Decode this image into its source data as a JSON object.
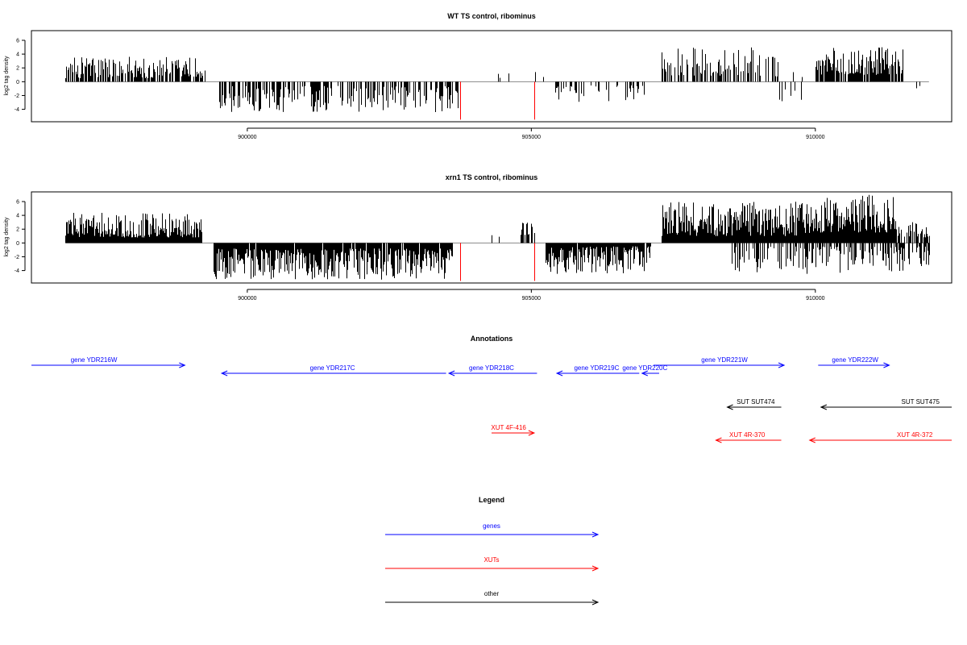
{
  "chart_data": [
    {
      "type": "bar",
      "title": "WT TS control, ribominus",
      "ylabel": "log2 tag density",
      "xlim": [
        896200,
        912400
      ],
      "ylim": [
        -5.8,
        7.4
      ],
      "xticks": [
        900000,
        905000,
        910000
      ],
      "xtick_labels": [
        "900000",
        "905000",
        "910000"
      ],
      "yticks": [
        6,
        4,
        2,
        0,
        -2,
        -4
      ],
      "ytick_labels": [
        "6",
        "4",
        "2",
        "0",
        "-2",
        "-4"
      ],
      "baseline": 0,
      "density_profile": [
        {
          "x": [
            896800,
            899250
          ],
          "value_range": [
            0.5,
            3.7
          ],
          "density": 0.7
        },
        {
          "x": [
            899500,
            903700
          ],
          "value_range": [
            -4.4,
            -0.6
          ],
          "density": 0.55
        },
        {
          "x": [
            904400,
            905300
          ],
          "value_range": [
            0.4,
            2.0
          ],
          "density": 0.05
        },
        {
          "x": [
            905400,
            907000
          ],
          "value_range": [
            -3.0,
            -0.5
          ],
          "density": 0.3
        },
        {
          "x": [
            907300,
            909300
          ],
          "value_range": [
            0.8,
            5.0
          ],
          "density": 0.45
        },
        {
          "x": [
            909300,
            909800
          ],
          "value_range": [
            -2.8,
            3.0
          ],
          "density": 0.35
        },
        {
          "x": [
            910000,
            911550
          ],
          "value_range": [
            1.0,
            5.0
          ],
          "density": 0.85
        },
        {
          "x": [
            911600,
            912000
          ],
          "value_range": [
            -2.0,
            -0.5
          ],
          "density": 0.1
        }
      ],
      "markers": [
        {
          "x": 903750,
          "value": -5.5,
          "color": "#ff0000"
        },
        {
          "x": 905050,
          "value": -5.5,
          "color": "#ff0000"
        }
      ],
      "series_color": "#000000"
    },
    {
      "type": "bar",
      "title": "xrn1 TS control, ribominus",
      "ylabel": "log2 tag density",
      "xlim": [
        896200,
        912400
      ],
      "ylim": [
        -5.8,
        7.4
      ],
      "xticks": [
        900000,
        905000,
        910000
      ],
      "xtick_labels": [
        "900000",
        "905000",
        "910000"
      ],
      "yticks": [
        6,
        4,
        2,
        0,
        -2,
        -4
      ],
      "ytick_labels": [
        "6",
        "4",
        "2",
        "0",
        "-2",
        "-4"
      ],
      "baseline": 0,
      "density_profile": [
        {
          "x": [
            896800,
            899200
          ],
          "value_range": [
            0.8,
            4.4
          ],
          "density": 1.0
        },
        {
          "x": [
            899400,
            903600
          ],
          "value_range": [
            -5.3,
            -0.8
          ],
          "density": 0.95
        },
        {
          "x": [
            904300,
            904500
          ],
          "value_range": [
            0.8,
            3.0
          ],
          "density": 0.15
        },
        {
          "x": [
            904800,
            905050
          ],
          "value_range": [
            1.0,
            3.0
          ],
          "density": 0.5
        },
        {
          "x": [
            905250,
            907100
          ],
          "value_range": [
            -4.5,
            -0.5
          ],
          "density": 0.95
        },
        {
          "x": [
            907300,
            910000
          ],
          "value_range": [
            1.0,
            6.0
          ],
          "density": 1.0
        },
        {
          "x": [
            908500,
            912000
          ],
          "value_range": [
            -4.5,
            -0.5
          ],
          "density": 0.55
        },
        {
          "x": [
            910000,
            911400
          ],
          "value_range": [
            1.5,
            7.0
          ],
          "density": 1.0
        },
        {
          "x": [
            911400,
            912000
          ],
          "value_range": [
            0.8,
            3.0
          ],
          "density": 0.7
        }
      ],
      "markers": [
        {
          "x": 903750,
          "value": -5.5,
          "color": "#ff0000"
        },
        {
          "x": 905050,
          "value": -5.5,
          "color": "#ff0000"
        }
      ],
      "series_color": "#000000"
    }
  ],
  "annotations": {
    "title": "Annotations",
    "colors": {
      "genes": "#0000ff",
      "xuts": "#ff0000",
      "other": "#000000"
    },
    "features": [
      {
        "label": "gene YDR216W",
        "class": "genes",
        "strand": "+",
        "track": 1,
        "start": 896200,
        "end": 898900,
        "label_x": 897300
      },
      {
        "label": "gene YDR217C",
        "class": "genes",
        "strand": "-",
        "track": 2,
        "start": 899550,
        "end": 903500,
        "label_x": 901500
      },
      {
        "label": "gene YDR218C",
        "class": "genes",
        "strand": "-",
        "track": 2,
        "start": 903550,
        "end": 905100,
        "label_x": 904300
      },
      {
        "label": "gene YDR219C",
        "class": "genes",
        "strand": "-",
        "track": 2,
        "start": 905450,
        "end": 906900,
        "label_x": 906150
      },
      {
        "label": "gene YDR220C",
        "class": "genes",
        "strand": "-",
        "track": 2,
        "start": 906950,
        "end": 907250,
        "label_x": 907000
      },
      {
        "label": "gene YDR221W",
        "class": "genes",
        "strand": "+",
        "track": 1,
        "start": 907150,
        "end": 909450,
        "label_x": 908400
      },
      {
        "label": "gene YDR222W",
        "class": "genes",
        "strand": "+",
        "track": 1,
        "start": 910050,
        "end": 911300,
        "label_x": 910700
      },
      {
        "label": "SUT SUT474",
        "class": "other",
        "strand": "-",
        "track": 3,
        "start": 908450,
        "end": 909400,
        "label_x": 908950
      },
      {
        "label": "SUT SUT475",
        "class": "other",
        "strand": "-",
        "track": 3,
        "start": 910100,
        "end": 912400,
        "label_x": 911850
      },
      {
        "label": "XUT 4F-416",
        "class": "xuts",
        "strand": "+",
        "track": 4,
        "start": 904300,
        "end": 905050,
        "label_x": 904600
      },
      {
        "label": "XUT 4R-370",
        "class": "xuts",
        "strand": "-",
        "track": 5,
        "start": 908250,
        "end": 909400,
        "label_x": 908800
      },
      {
        "label": "XUT 4R-372",
        "class": "xuts",
        "strand": "-",
        "track": 5,
        "start": 909900,
        "end": 912400,
        "label_x": 911750
      }
    ]
  },
  "legend": {
    "title": "Legend",
    "items": [
      {
        "label": "genes",
        "color": "#0000ff"
      },
      {
        "label": "XUTs",
        "color": "#ff0000"
      },
      {
        "label": "other",
        "color": "#000000"
      }
    ]
  }
}
